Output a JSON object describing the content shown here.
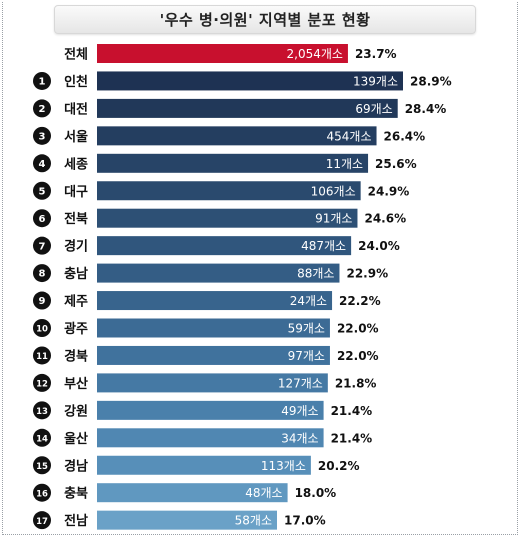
{
  "title": "'우수 병·의원' 지역별 분포 현황",
  "chart_data": {
    "type": "bar",
    "orientation": "horizontal",
    "title": "'우수 병·의원' 지역별 분포 현황",
    "categories": [
      {
        "rank": "",
        "name": "전체",
        "count": "2,054개소",
        "pct": 23.7,
        "pct_label": "23.7%",
        "color": "#c8102e"
      },
      {
        "rank": "1",
        "name": "인천",
        "count": "139개소",
        "pct": 28.9,
        "pct_label": "28.9%",
        "color": "#1e3253"
      },
      {
        "rank": "2",
        "name": "대전",
        "count": "69개소",
        "pct": 28.4,
        "pct_label": "28.4%",
        "color": "#213859"
      },
      {
        "rank": "3",
        "name": "서울",
        "count": "454개소",
        "pct": 26.4,
        "pct_label": "26.4%",
        "color": "#243e60"
      },
      {
        "rank": "4",
        "name": "세종",
        "count": "11개소",
        "pct": 25.6,
        "pct_label": "25.6%",
        "color": "#274467"
      },
      {
        "rank": "5",
        "name": "대구",
        "count": "106개소",
        "pct": 24.9,
        "pct_label": "24.9%",
        "color": "#2a4a6e"
      },
      {
        "rank": "6",
        "name": "전북",
        "count": "91개소",
        "pct": 24.6,
        "pct_label": "24.6%",
        "color": "#2d5075"
      },
      {
        "rank": "7",
        "name": "경기",
        "count": "487개소",
        "pct": 24.0,
        "pct_label": "24.0%",
        "color": "#30567d"
      },
      {
        "rank": "8",
        "name": "충남",
        "count": "88개소",
        "pct": 22.9,
        "pct_label": "22.9%",
        "color": "#345d85"
      },
      {
        "rank": "9",
        "name": "제주",
        "count": "24개소",
        "pct": 22.2,
        "pct_label": "22.2%",
        "color": "#38648d"
      },
      {
        "rank": "10",
        "name": "광주",
        "count": "59개소",
        "pct": 22.0,
        "pct_label": "22.0%",
        "color": "#3c6b95"
      },
      {
        "rank": "11",
        "name": "경북",
        "count": "97개소",
        "pct": 22.0,
        "pct_label": "22.0%",
        "color": "#40729d"
      },
      {
        "rank": "12",
        "name": "부산",
        "count": "127개소",
        "pct": 21.8,
        "pct_label": "21.8%",
        "color": "#4579a4"
      },
      {
        "rank": "13",
        "name": "강원",
        "count": "49개소",
        "pct": 21.4,
        "pct_label": "21.4%",
        "color": "#4a80ab"
      },
      {
        "rank": "14",
        "name": "울산",
        "count": "34개소",
        "pct": 21.4,
        "pct_label": "21.4%",
        "color": "#5087b2"
      },
      {
        "rank": "15",
        "name": "경남",
        "count": "113개소",
        "pct": 20.2,
        "pct_label": "20.2%",
        "color": "#578fb9"
      },
      {
        "rank": "16",
        "name": "충북",
        "count": "48개소",
        "pct": 18.0,
        "pct_label": "18.0%",
        "color": "#6098c0"
      },
      {
        "rank": "17",
        "name": "전남",
        "count": "58개소",
        "pct": 17.0,
        "pct_label": "17.0%",
        "color": "#6aa1c7"
      }
    ],
    "xlim": [
      0,
      28.9
    ],
    "grid": false,
    "legend": "none"
  }
}
